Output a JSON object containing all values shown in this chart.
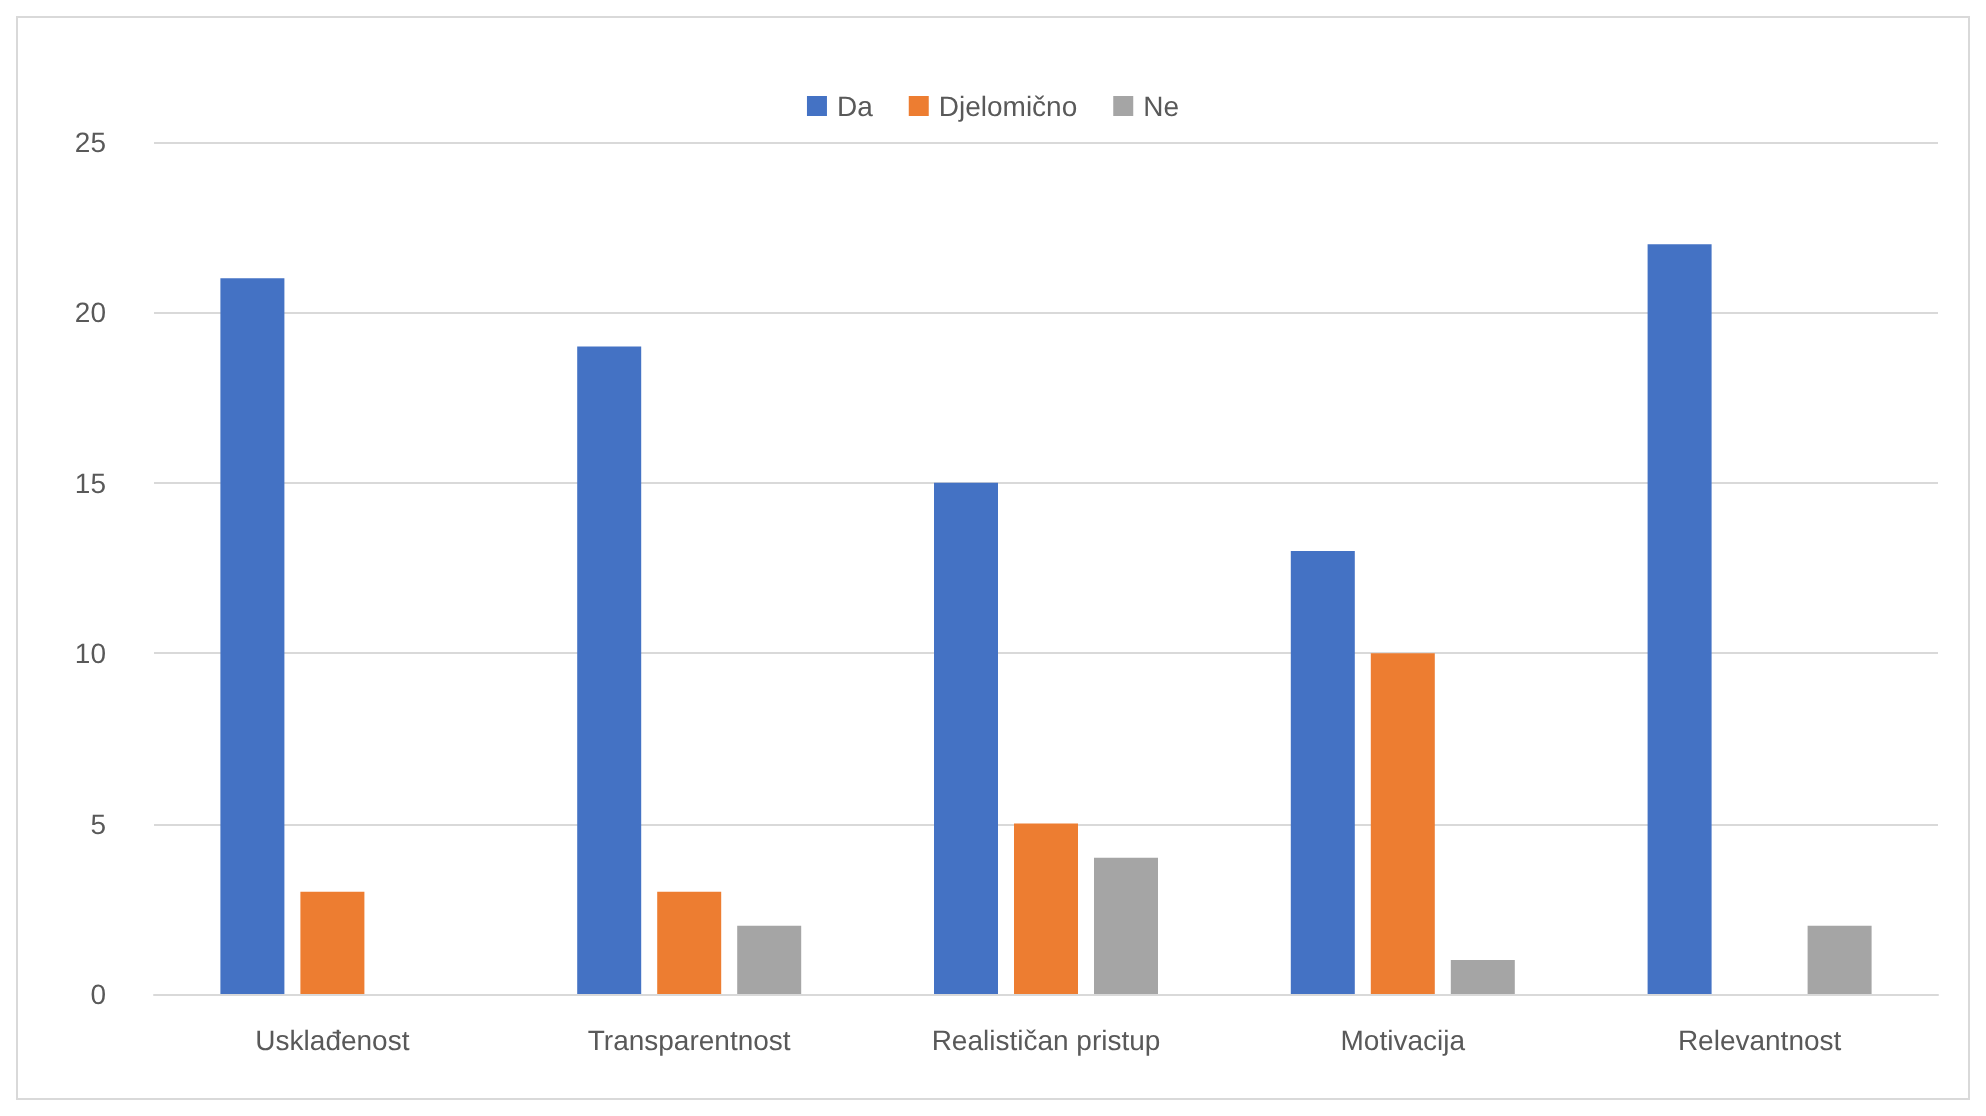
{
  "chart_data": {
    "type": "bar",
    "categories": [
      "Usklađenost",
      "Transparentnost",
      "Realističan pristup",
      "Motivacija",
      "Relevantnost"
    ],
    "series": [
      {
        "name": "Da",
        "color": "#4472c4",
        "values": [
          21,
          19,
          15,
          13,
          22
        ]
      },
      {
        "name": "Djelomično",
        "color": "#ed7d31",
        "values": [
          3,
          3,
          5,
          10,
          0
        ]
      },
      {
        "name": "Ne",
        "color": "#a5a5a5",
        "values": [
          0,
          2,
          4,
          1,
          2
        ]
      }
    ],
    "ylim": [
      0,
      25
    ],
    "yticks": [
      0,
      5,
      10,
      15,
      20,
      25
    ],
    "grid": "y",
    "legend": "top"
  }
}
